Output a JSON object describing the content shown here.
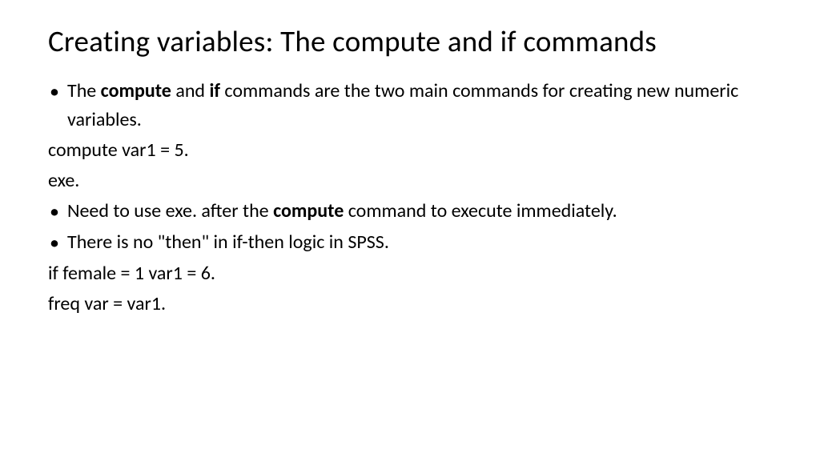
{
  "slide": {
    "title": "Creating variables: The compute and if commands",
    "title_fontsize": 37,
    "body_fontsize": 24,
    "text_color": "#000000",
    "background_color": "#ffffff",
    "bullet_char": "•",
    "lines": {
      "b1_pre": "The ",
      "b1_bold1": "compute",
      "b1_mid": " and ",
      "b1_bold2": "if",
      "b1_post": " commands are the two main commands for creating new numeric variables.",
      "p1": "compute var1 = 5.",
      "p2": "exe.",
      "b2_pre": "Need to use exe. after the ",
      "b2_bold1": "compute",
      "b2_post": " command to execute immediately.",
      "b3": "There is no \"then\" in if-then logic in SPSS.",
      "p3": "if female = 1 var1 = 6.",
      "p4": "freq var = var1."
    }
  }
}
